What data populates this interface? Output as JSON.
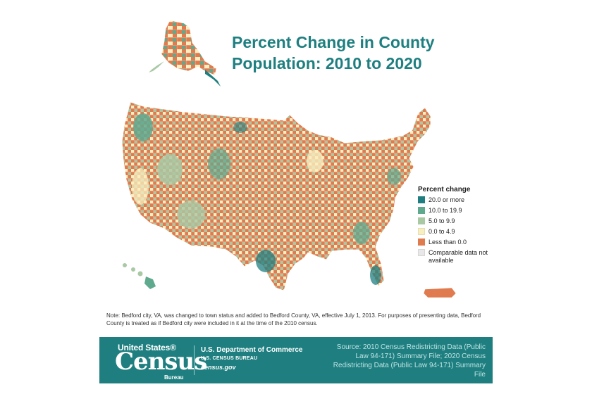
{
  "title_line1": "Percent Change in County",
  "title_line2": "Population: 2010 to 2020",
  "legend": {
    "title": "Percent change",
    "items": [
      {
        "label": "20.0 or more",
        "color": "#1f7f80"
      },
      {
        "label": "10.0 to 19.9",
        "color": "#5fa98f"
      },
      {
        "label": "5.0 to 9.9",
        "color": "#a9c9a4"
      },
      {
        "label": "0.0 to 4.9",
        "color": "#f7efbf"
      },
      {
        "label": "Less than 0.0",
        "color": "#e07b4f"
      },
      {
        "label": "Comparable data not available",
        "color": "#e8e8e8"
      }
    ]
  },
  "note": "Note: Bedford city, VA, was changed to town status and added to Bedford County, VA, effective July 1, 2013. For purposes of presenting data, Bedford County is treated as if Bedford city were included in it at the time of the 2010 census.",
  "footer": {
    "logo_top": "United States®",
    "logo_main": "Census",
    "logo_sub": "Bureau",
    "dept_line1": "U.S. Department of Commerce",
    "dept_line2": "U.S. CENSUS BUREAU",
    "dept_line3": "census.gov",
    "source": "Source: 2010 Census Redistricting Data (Public Law 94-171) Summary File; 2020 Census Redistricting Data (Public Law 94-171) Summary File"
  },
  "map_regions": [
    "Alaska",
    "Hawaii",
    "Contiguous United States",
    "Puerto Rico"
  ]
}
